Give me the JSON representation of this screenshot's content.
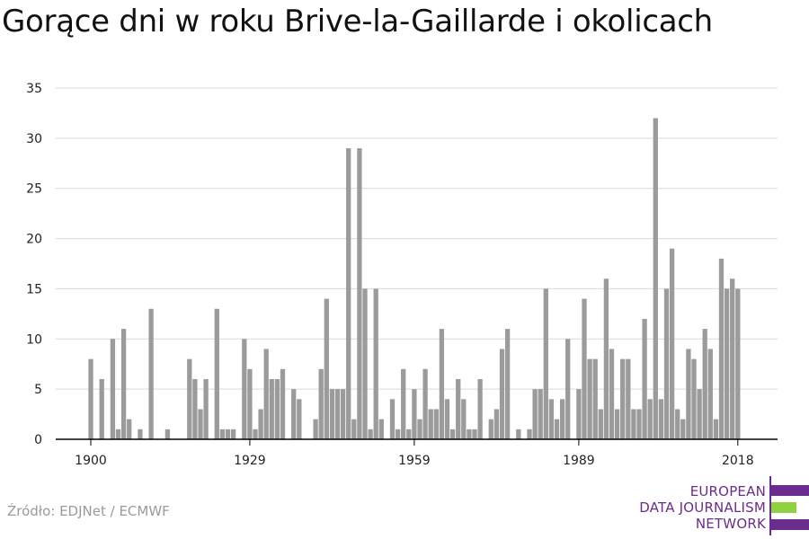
{
  "title": "Gorące dni w roku Brive-la-Gaillarde i okolicach",
  "source": "Źródło: EDJNet / ECMWF",
  "logo": {
    "line1": "EUROPEAN",
    "line2": "DATA JOURNALISM",
    "line3": "NETWORK",
    "colors": {
      "purple": "#6b2c8f",
      "green": "#8fd13f"
    }
  },
  "colors": {
    "bar": "#9b9b9b",
    "grid": "#d9d9d9",
    "axis": "#000000"
  },
  "chart_data": {
    "type": "bar",
    "title": "Gorące dni w roku Brive-la-Gaillarde i okolicach",
    "xlabel": "",
    "ylabel": "",
    "ylim": [
      0,
      35
    ],
    "yticks": [
      0,
      5,
      10,
      15,
      20,
      25,
      30,
      35
    ],
    "xticks": [
      1900,
      1929,
      1959,
      1989,
      2018
    ],
    "xlim": [
      1900,
      2018
    ],
    "grid": true,
    "x": [
      1900,
      1901,
      1902,
      1903,
      1904,
      1905,
      1906,
      1907,
      1908,
      1909,
      1910,
      1911,
      1912,
      1913,
      1914,
      1915,
      1916,
      1917,
      1918,
      1919,
      1920,
      1921,
      1922,
      1923,
      1924,
      1925,
      1926,
      1927,
      1928,
      1929,
      1930,
      1931,
      1932,
      1933,
      1934,
      1935,
      1936,
      1937,
      1938,
      1939,
      1940,
      1941,
      1942,
      1943,
      1944,
      1945,
      1946,
      1947,
      1948,
      1949,
      1950,
      1951,
      1952,
      1953,
      1954,
      1955,
      1956,
      1957,
      1958,
      1959,
      1960,
      1961,
      1962,
      1963,
      1964,
      1965,
      1966,
      1967,
      1968,
      1969,
      1970,
      1971,
      1972,
      1973,
      1974,
      1975,
      1976,
      1977,
      1978,
      1979,
      1980,
      1981,
      1982,
      1983,
      1984,
      1985,
      1986,
      1987,
      1988,
      1989,
      1990,
      1991,
      1992,
      1993,
      1994,
      1995,
      1996,
      1997,
      1998,
      1999,
      2000,
      2001,
      2002,
      2003,
      2004,
      2005,
      2006,
      2007,
      2008,
      2009,
      2010,
      2011,
      2012,
      2013,
      2014,
      2015,
      2016,
      2017,
      2018
    ],
    "values": [
      8,
      0,
      6,
      0,
      10,
      1,
      11,
      2,
      0,
      1,
      0,
      13,
      0,
      0,
      1,
      0,
      0,
      0,
      8,
      6,
      3,
      6,
      0,
      13,
      1,
      1,
      1,
      0,
      10,
      7,
      1,
      3,
      9,
      6,
      6,
      7,
      0,
      5,
      4,
      0,
      0,
      2,
      7,
      14,
      5,
      5,
      5,
      29,
      2,
      29,
      15,
      1,
      15,
      2,
      0,
      4,
      1,
      7,
      1,
      5,
      2,
      7,
      3,
      3,
      11,
      4,
      1,
      6,
      4,
      1,
      1,
      6,
      0,
      2,
      3,
      9,
      11,
      0,
      1,
      0,
      1,
      5,
      5,
      15,
      4,
      2,
      4,
      10,
      0,
      5,
      14,
      8,
      8,
      3,
      16,
      9,
      3,
      8,
      8,
      3,
      3,
      12,
      4,
      32,
      4,
      15,
      19,
      3,
      2,
      9,
      8,
      5,
      11,
      9,
      2,
      18,
      15,
      16,
      15
    ]
  }
}
